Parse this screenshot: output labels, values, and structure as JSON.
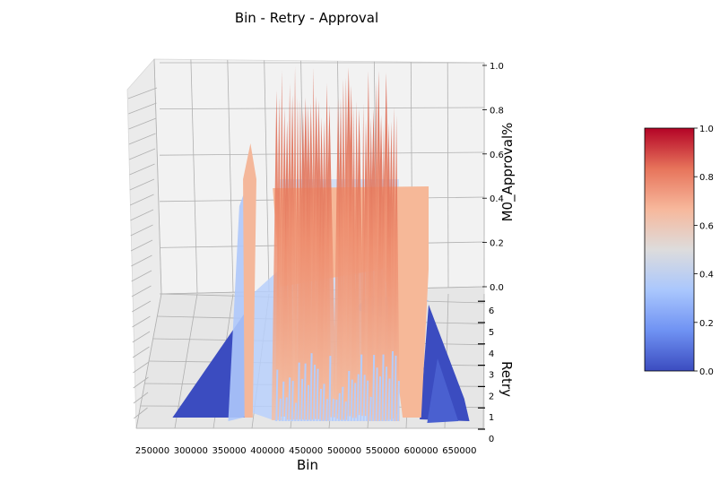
{
  "chart_data": {
    "type": "surface-3d",
    "title": "Bin - Retry - Approval",
    "xlabel": "Bin",
    "ylabel": "Retry",
    "zlabel": "M0_Approval%",
    "x_ticks": [
      "250000",
      "300000",
      "350000",
      "400000",
      "450000",
      "500000",
      "550000",
      "600000",
      "650000"
    ],
    "y_ticks": [
      "0",
      "1",
      "2",
      "3",
      "4",
      "5",
      "6"
    ],
    "z_ticks": [
      "0.0",
      "0.2",
      "0.4",
      "0.6",
      "0.8",
      "1.0"
    ],
    "xlim": [
      240000,
      670000
    ],
    "ylim": [
      0,
      6
    ],
    "zlim": [
      0,
      1
    ],
    "grid": true,
    "colormap": "coolwarm",
    "colorbar": {
      "ticks": [
        "0.0",
        "0.2",
        "0.4",
        "0.6",
        "0.8",
        "1.0"
      ],
      "range": [
        0,
        1
      ],
      "colors": [
        "#3b4cc0",
        "#6f92f3",
        "#aac7fd",
        "#dddcdc",
        "#f7b89c",
        "#e7745b",
        "#b40426"
      ]
    }
  }
}
